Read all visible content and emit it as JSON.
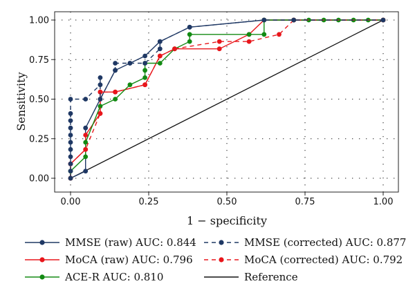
{
  "chart_data": {
    "type": "line",
    "title": "",
    "xlabel": "1 − specificity",
    "ylabel": "Sensitivity",
    "xlim": [
      0,
      1
    ],
    "ylim": [
      0,
      1
    ],
    "xticks": [
      "0.00",
      "0.25",
      "0.50",
      "0.75",
      "1.00"
    ],
    "yticks": [
      "0.00",
      "0.25",
      "0.50",
      "0.75",
      "1.00"
    ],
    "grid": true,
    "legend_position": "bottom",
    "series": [
      {
        "name": "MMSE (raw) AUC: 0.844",
        "color": "#1f3864",
        "dash": "solid",
        "marker": true,
        "x": [
          0,
          0.048,
          0.048,
          0.095,
          0.143,
          0.19,
          0.238,
          0.286,
          0.381,
          0.619,
          0.714,
          1
        ],
        "y": [
          0,
          0.045,
          0.318,
          0.5,
          0.682,
          0.727,
          0.773,
          0.864,
          0.955,
          1,
          1,
          1
        ]
      },
      {
        "name": "MMSE (corrected) AUC: 0.877",
        "color": "#1f3864",
        "dash": "dashed",
        "marker": true,
        "x": [
          0,
          0,
          0,
          0,
          0,
          0,
          0,
          0,
          0,
          0,
          0,
          0.048,
          0.095,
          0.095,
          0.095,
          0.143,
          0.143,
          0.19,
          0.238,
          0.286,
          0.286,
          0.381,
          0.619,
          0.714,
          1
        ],
        "y": [
          0,
          0.045,
          0.091,
          0.136,
          0.182,
          0.227,
          0.273,
          0.318,
          0.364,
          0.409,
          0.5,
          0.5,
          0.591,
          0.636,
          0.5,
          0.682,
          0.727,
          0.727,
          0.727,
          0.818,
          0.864,
          0.955,
          1,
          1,
          1
        ]
      },
      {
        "name": "MoCA (raw) AUC: 0.796",
        "color": "#e8161b",
        "dash": "solid",
        "marker": true,
        "x": [
          0,
          0,
          0.048,
          0.048,
          0.095,
          0.095,
          0.143,
          0.238,
          0.286,
          0.333,
          0.476,
          0.571,
          0.619,
          0.714,
          1
        ],
        "y": [
          0,
          0.091,
          0.182,
          0.273,
          0.409,
          0.545,
          0.545,
          0.591,
          0.773,
          0.818,
          0.818,
          0.909,
          1,
          1,
          1
        ]
      },
      {
        "name": "MoCA (corrected) AUC: 0.792",
        "color": "#e8161b",
        "dash": "dashed",
        "marker": true,
        "x": [
          0,
          0,
          0.048,
          0.095,
          0.095,
          0.143,
          0.238,
          0.286,
          0.333,
          0.476,
          0.571,
          0.667,
          0.714,
          1
        ],
        "y": [
          0,
          0.091,
          0.182,
          0.409,
          0.545,
          0.545,
          0.591,
          0.773,
          0.818,
          0.864,
          0.864,
          0.909,
          1,
          1
        ]
      },
      {
        "name": "ACE-R AUC: 0.810",
        "color": "#138a13",
        "dash": "solid",
        "marker": true,
        "x": [
          0,
          0,
          0.048,
          0.048,
          0.095,
          0.143,
          0.19,
          0.238,
          0.238,
          0.238,
          0.286,
          0.333,
          0.381,
          0.381,
          0.571,
          0.619,
          0.619,
          0.714,
          0.762,
          0.81,
          0.857,
          0.905,
          0.952,
          1
        ],
        "y": [
          0,
          0.045,
          0.136,
          0.227,
          0.455,
          0.5,
          0.591,
          0.636,
          0.682,
          0.727,
          0.727,
          0.818,
          0.864,
          0.909,
          0.909,
          0.909,
          1,
          1,
          1,
          1,
          1,
          1,
          1,
          1
        ]
      },
      {
        "name": "Reference",
        "color": "#111111",
        "dash": "solid",
        "marker": false,
        "x": [
          0,
          1
        ],
        "y": [
          0,
          1
        ]
      }
    ]
  }
}
